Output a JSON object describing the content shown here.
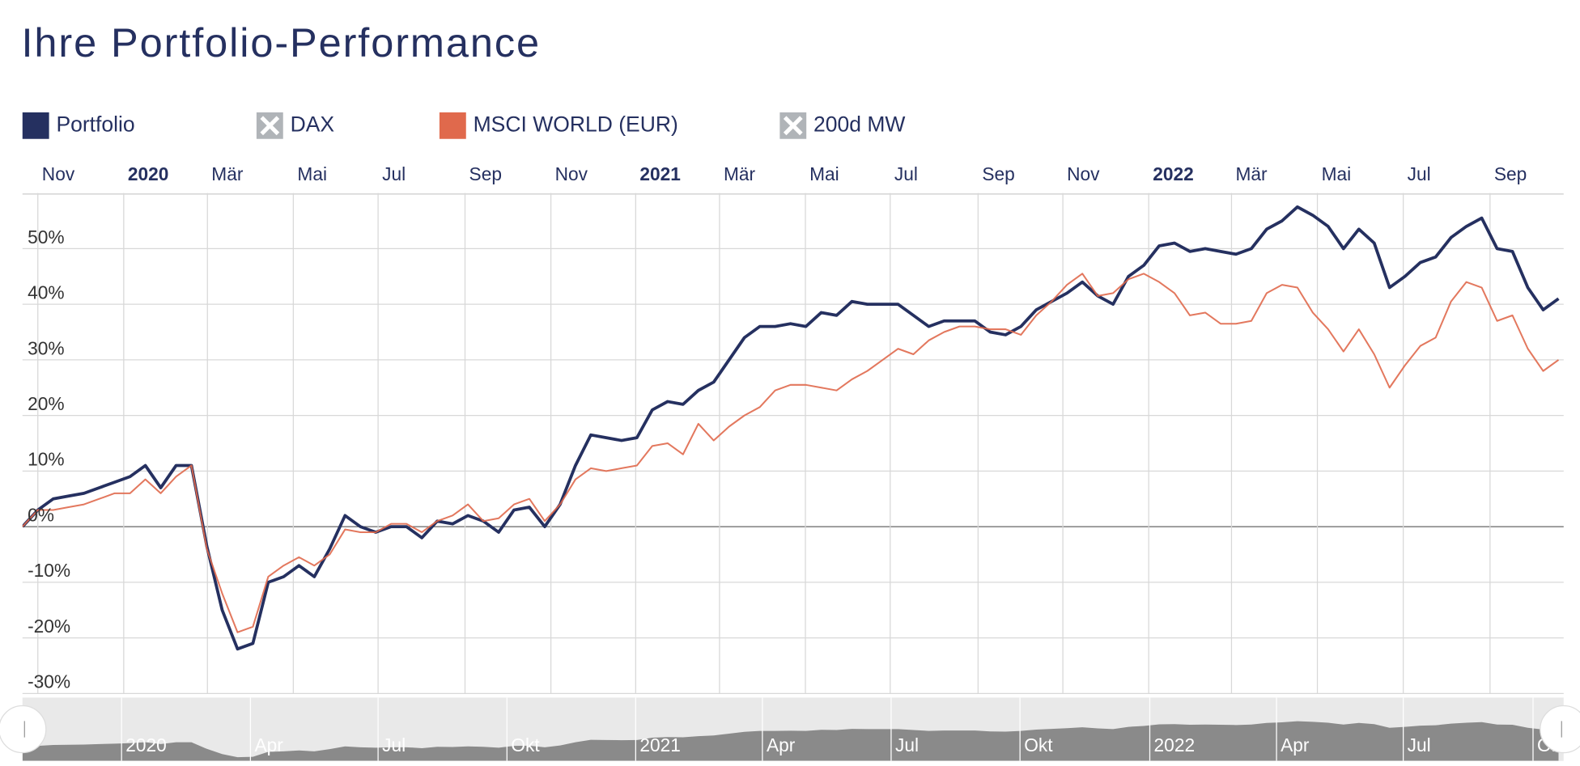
{
  "chart_data": {
    "type": "line",
    "title": "Ihre Portfolio-Performance",
    "series": [
      {
        "name": "Portfolio",
        "color": "#253060",
        "visible": true,
        "values": [
          0,
          3,
          5,
          5.5,
          6,
          7,
          8,
          9,
          11,
          7,
          11,
          11,
          -3.5,
          -15,
          -22,
          -21,
          -10,
          -9,
          -7,
          -9,
          -4,
          2,
          0,
          -1,
          0,
          0,
          -2,
          1,
          0.5,
          2,
          1,
          -1,
          3,
          3.5,
          0,
          4,
          11,
          16.5,
          16,
          15.5,
          16,
          21,
          22.5,
          22,
          24.5,
          26,
          30,
          34,
          36,
          36,
          36.5,
          36,
          38.5,
          38,
          40.5,
          40,
          40,
          40,
          38,
          36,
          37,
          37,
          37,
          35,
          34.5,
          36,
          39,
          40.5,
          42,
          44,
          41.5,
          40,
          45,
          47,
          50.5,
          51,
          49.5,
          50,
          49.5,
          49,
          50,
          53.5,
          55,
          57.5,
          56,
          54,
          50,
          53.5,
          51,
          43,
          45,
          47.5,
          48.5,
          52,
          54,
          55.5,
          50,
          49.5,
          43,
          39,
          41
        ]
      },
      {
        "name": "DAX",
        "color": "#b0b4b8",
        "visible": false
      },
      {
        "name": "MSCI WORLD (EUR)",
        "color": "#e0694c",
        "visible": true,
        "values": [
          0,
          3,
          3,
          3.5,
          4,
          5,
          6,
          6,
          8.5,
          6,
          9,
          11,
          -4,
          -12,
          -19,
          -18,
          -9,
          -7,
          -5.5,
          -7,
          -5,
          -0.5,
          -1,
          -1,
          0.5,
          0.5,
          -1,
          1,
          2,
          4,
          1,
          1.5,
          4,
          5,
          1,
          4,
          8.5,
          10.5,
          10,
          10.5,
          11,
          14.5,
          15,
          13,
          18.5,
          15.5,
          18,
          20,
          21.5,
          24.5,
          25.5,
          25.5,
          25,
          24.5,
          26.5,
          28,
          30,
          32,
          31,
          33.5,
          35,
          36,
          36,
          35.5,
          35.5,
          34.5,
          38,
          40.5,
          43.5,
          45.5,
          41.5,
          42,
          44.5,
          45.5,
          44,
          42,
          38,
          38.5,
          36.5,
          36.5,
          37,
          42,
          43.5,
          43,
          38.5,
          35.5,
          31.5,
          35.5,
          31,
          25,
          29,
          32.5,
          34,
          40.5,
          44,
          43,
          37,
          38,
          32,
          28,
          30
        ]
      },
      {
        "name": "200d MW",
        "color": "#b0b4b8",
        "visible": false
      }
    ],
    "xlim": [
      0,
      100
    ],
    "xticks": [
      {
        "value": 1.0,
        "label": "Nov"
      },
      {
        "value": 6.59,
        "label": "2020"
      },
      {
        "value": 12.04,
        "label": "Mär"
      },
      {
        "value": 17.63,
        "label": "Mai"
      },
      {
        "value": 23.15,
        "label": "Jul"
      },
      {
        "value": 28.81,
        "label": "Sep"
      },
      {
        "value": 34.4,
        "label": "Nov"
      },
      {
        "value": 39.92,
        "label": "2021"
      },
      {
        "value": 45.38,
        "label": "Mär"
      },
      {
        "value": 50.97,
        "label": "Mai"
      },
      {
        "value": 56.49,
        "label": "Jul"
      },
      {
        "value": 62.21,
        "label": "Sep"
      },
      {
        "value": 67.73,
        "label": "Nov"
      },
      {
        "value": 73.32,
        "label": "2022"
      },
      {
        "value": 78.71,
        "label": "Mär"
      },
      {
        "value": 84.3,
        "label": "Mai"
      },
      {
        "value": 89.89,
        "label": "Jul"
      },
      {
        "value": 95.54,
        "label": "Sep"
      }
    ],
    "ylim": [
      -30,
      60
    ],
    "yticks": [
      {
        "value": -30,
        "label": "-30%"
      },
      {
        "value": -20,
        "label": "-20%"
      },
      {
        "value": -10,
        "label": "-10%"
      },
      {
        "value": 0,
        "label": "0%"
      },
      {
        "value": 10,
        "label": "10%"
      },
      {
        "value": 20,
        "label": "20%"
      },
      {
        "value": 30,
        "label": "30%"
      },
      {
        "value": 40,
        "label": "40%"
      },
      {
        "value": 50,
        "label": "50%"
      }
    ],
    "grid": true,
    "navigator": {
      "ticks": [
        {
          "value": 6.45,
          "label": "2020"
        },
        {
          "value": 14.84,
          "label": "Apr"
        },
        {
          "value": 23.15,
          "label": "Jul"
        },
        {
          "value": 31.54,
          "label": "Okt"
        },
        {
          "value": 39.92,
          "label": "2021"
        },
        {
          "value": 48.17,
          "label": "Apr"
        },
        {
          "value": 56.55,
          "label": "Jul"
        },
        {
          "value": 64.94,
          "label": "Okt"
        },
        {
          "value": 73.39,
          "label": "2022"
        },
        {
          "value": 81.64,
          "label": "Apr"
        },
        {
          "value": 89.89,
          "label": "Jul"
        },
        {
          "value": 98.34,
          "label": "Okt"
        }
      ]
    }
  }
}
